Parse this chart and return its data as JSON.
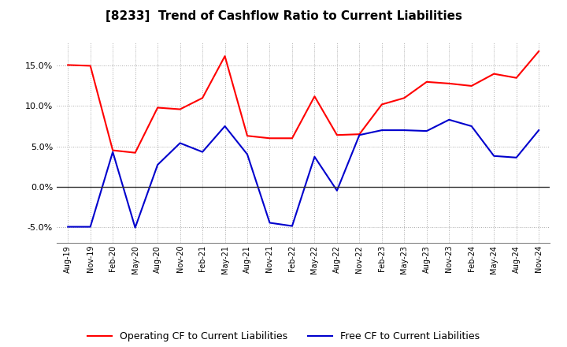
{
  "title": "[8233]  Trend of Cashflow Ratio to Current Liabilities",
  "x_labels": [
    "Aug-19",
    "Nov-19",
    "Feb-20",
    "May-20",
    "Aug-20",
    "Nov-20",
    "Feb-21",
    "May-21",
    "Aug-21",
    "Nov-21",
    "Feb-22",
    "May-22",
    "Aug-22",
    "Nov-22",
    "Feb-23",
    "May-23",
    "Aug-23",
    "Nov-23",
    "Feb-24",
    "May-24",
    "Aug-24",
    "Nov-24"
  ],
  "operating_cf": [
    15.1,
    15.0,
    4.5,
    4.2,
    9.8,
    9.6,
    11.0,
    16.2,
    6.3,
    6.0,
    6.0,
    11.2,
    6.4,
    6.5,
    10.2,
    11.0,
    13.0,
    12.8,
    12.5,
    14.0,
    13.5,
    16.8
  ],
  "free_cf": [
    -5.0,
    -5.0,
    4.3,
    -5.1,
    2.7,
    5.4,
    4.3,
    7.5,
    4.0,
    -4.5,
    -4.9,
    3.7,
    -0.5,
    6.4,
    7.0,
    7.0,
    6.9,
    8.3,
    7.5,
    3.8,
    3.6,
    7.0
  ],
  "operating_color": "#FF0000",
  "free_color": "#0000CD",
  "ylim": [
    -7,
    18
  ],
  "yticks": [
    -5.0,
    0.0,
    5.0,
    10.0,
    15.0
  ],
  "grid_color": "#aaaaaa",
  "background_color": "#ffffff",
  "legend_op": "Operating CF to Current Liabilities",
  "legend_free": "Free CF to Current Liabilities"
}
